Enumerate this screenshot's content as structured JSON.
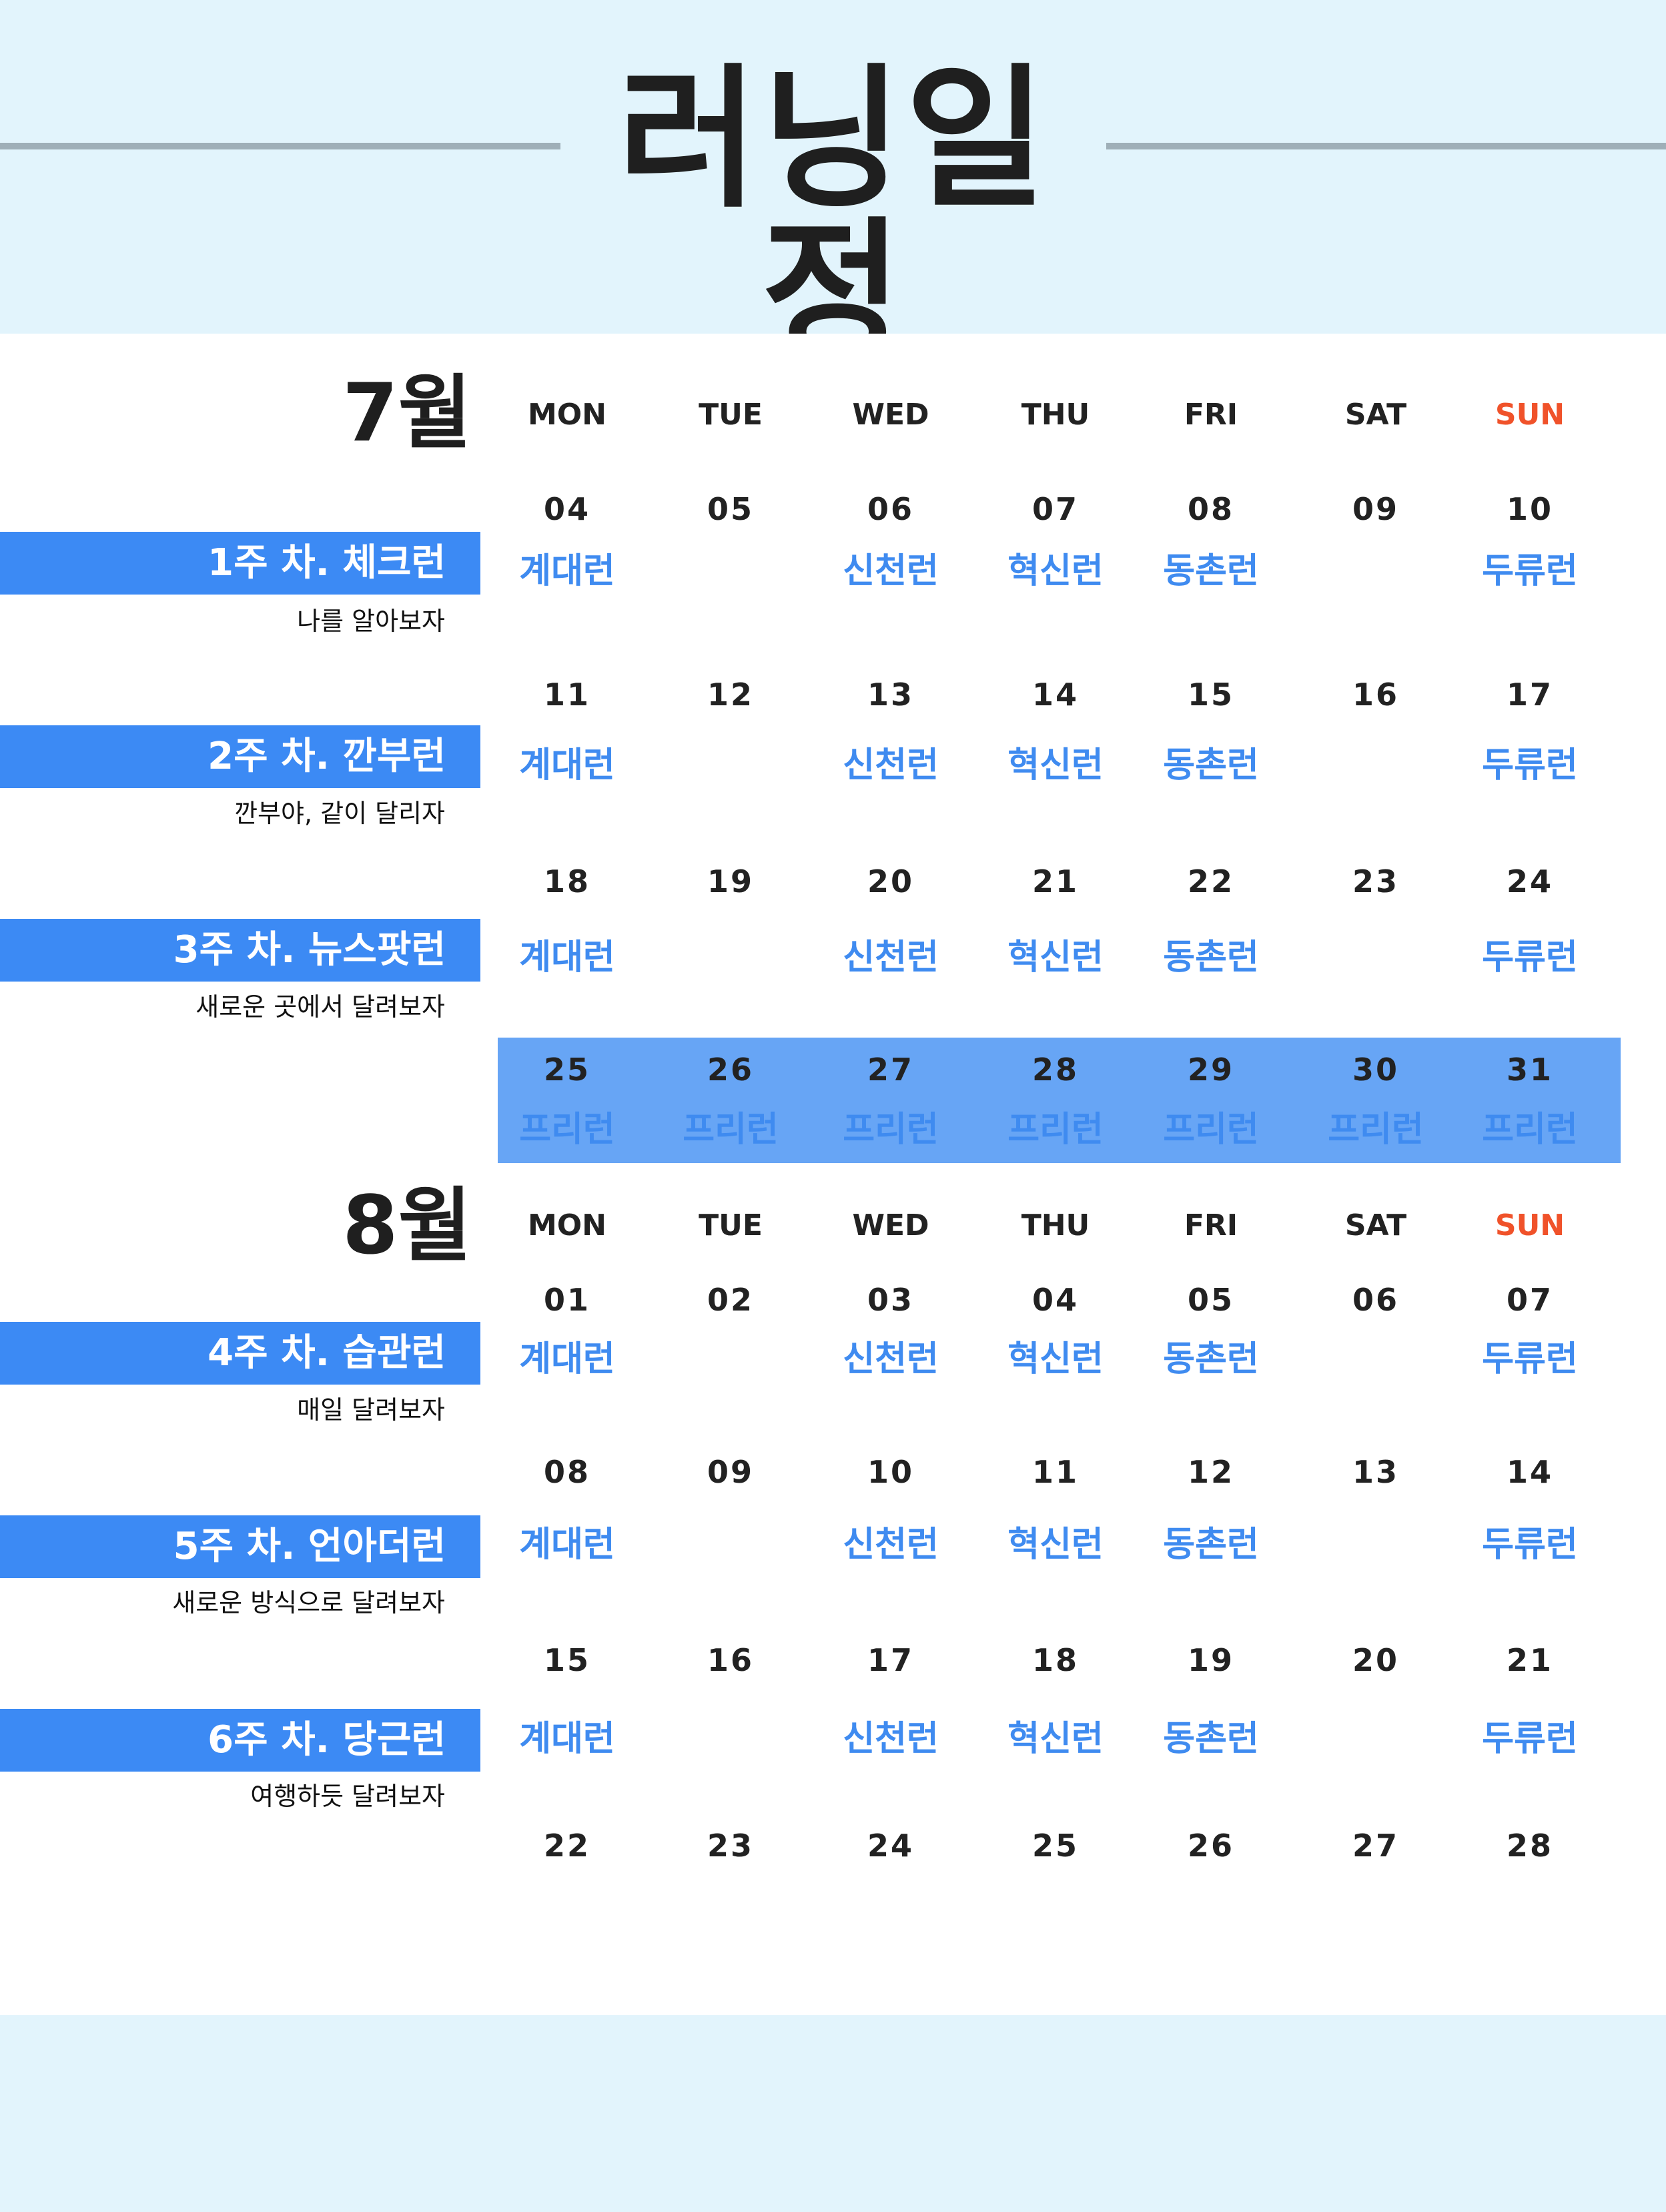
{
  "title": "러닝일정",
  "colors": {
    "accent": "#3c8af4",
    "run_text": "#3f8bf0",
    "sunday": "#f0522a",
    "background": "#e2f4fc",
    "free_band": "#67a5f5"
  },
  "weekdays": [
    "MON",
    "TUE",
    "WED",
    "THU",
    "FRI",
    "SAT",
    "SUN"
  ],
  "july": {
    "label": "7월",
    "weeks": [
      {
        "title": "1주 차. 체크런",
        "subtitle": "나를 알아보자",
        "dates": [
          "04",
          "05",
          "06",
          "07",
          "08",
          "09",
          "10"
        ],
        "runs": [
          "계대런",
          "",
          "신천런",
          "혁신런",
          "동촌런",
          "",
          "두류런"
        ]
      },
      {
        "title": "2주 차. 깐부런",
        "subtitle": "깐부야, 같이 달리자",
        "dates": [
          "11",
          "12",
          "13",
          "14",
          "15",
          "16",
          "17"
        ],
        "runs": [
          "계대런",
          "",
          "신천런",
          "혁신런",
          "동촌런",
          "",
          "두류런"
        ]
      },
      {
        "title": "3주 차. 뉴스팟런",
        "subtitle": "새로운 곳에서 달려보자",
        "dates": [
          "18",
          "19",
          "20",
          "21",
          "22",
          "23",
          "24"
        ],
        "runs": [
          "계대런",
          "",
          "신천런",
          "혁신런",
          "동촌런",
          "",
          "두류런"
        ]
      }
    ],
    "free_week": {
      "dates": [
        "25",
        "26",
        "27",
        "28",
        "29",
        "30",
        "31"
      ],
      "runs": [
        "프리런",
        "프리런",
        "프리런",
        "프리런",
        "프리런",
        "프리런",
        "프리런"
      ]
    }
  },
  "august": {
    "label": "8월",
    "weeks": [
      {
        "title": "4주 차. 습관런",
        "subtitle": "매일 달려보자",
        "dates": [
          "01",
          "02",
          "03",
          "04",
          "05",
          "06",
          "07"
        ],
        "runs": [
          "계대런",
          "",
          "신천런",
          "혁신런",
          "동촌런",
          "",
          "두류런"
        ]
      },
      {
        "title": "5주 차. 언아더런",
        "subtitle": "새로운 방식으로 달려보자",
        "dates": [
          "08",
          "09",
          "10",
          "11",
          "12",
          "13",
          "14"
        ],
        "runs": [
          "계대런",
          "",
          "신천런",
          "혁신런",
          "동촌런",
          "",
          "두류런"
        ]
      },
      {
        "title": "6주 차. 당근런",
        "subtitle": "여행하듯 달려보자",
        "dates": [
          "15",
          "16",
          "17",
          "18",
          "19",
          "20",
          "21"
        ],
        "runs": [
          "계대런",
          "",
          "신천런",
          "혁신런",
          "동촌런",
          "",
          "두류런"
        ]
      }
    ],
    "last_dates": [
      "22",
      "23",
      "24",
      "25",
      "26",
      "27",
      "28"
    ]
  }
}
